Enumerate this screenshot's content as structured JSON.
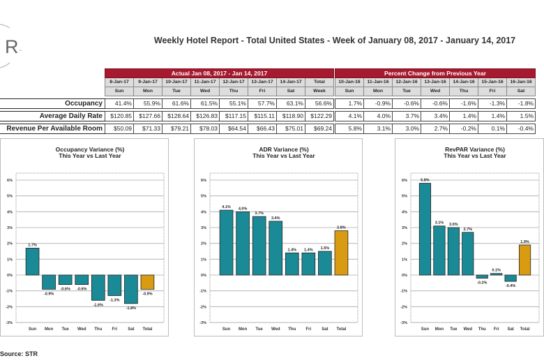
{
  "logo": {
    "text": "STR"
  },
  "title": "Weekly Hotel Report - Total United States - Week of January 08, 2017 - January 14, 2017",
  "table": {
    "actual_header": "Actual Jan 08, 2017 - Jan 14, 2017",
    "change_header": "Percent Change from Previous Year",
    "actual_dates": [
      "8-Jan-17",
      "9-Jan-17",
      "10-Jan-17",
      "11-Jan-17",
      "12-Jan-17",
      "13-Jan-17",
      "14-Jan-17",
      "Total"
    ],
    "actual_days": [
      "Sun",
      "Mon",
      "Tue",
      "Wed",
      "Thu",
      "Fri",
      "Sat",
      "Week"
    ],
    "change_dates": [
      "10-Jan-16",
      "11-Jan-16",
      "12-Jan-16",
      "13-Jan-16",
      "14-Jan-16",
      "15-Jan-16",
      "16-Jan-16"
    ],
    "change_days": [
      "Sun",
      "Mon",
      "Tue",
      "Wed",
      "Thu",
      "Fri",
      "Sat"
    ],
    "rows": [
      {
        "label": "Occupancy",
        "actual": [
          "41.4%",
          "55.9%",
          "61.6%",
          "61.5%",
          "55.1%",
          "57.7%",
          "63.1%",
          "56.6%"
        ],
        "change": [
          "1.7%",
          "-0.9%",
          "-0.6%",
          "-0.6%",
          "-1.6%",
          "-1.3%",
          "-1.8%"
        ]
      },
      {
        "label": "Average Daily Rate",
        "actual": [
          "$120.85",
          "$127.66",
          "$128.64",
          "$126.83",
          "$117.15",
          "$115.11",
          "$118.90",
          "$122.29"
        ],
        "change": [
          "4.1%",
          "4.0%",
          "3.7%",
          "3.4%",
          "1.4%",
          "1.4%",
          "1.5%"
        ]
      },
      {
        "label": "Revenue Per Available Room",
        "actual": [
          "$50.09",
          "$71.33",
          "$79.21",
          "$78.03",
          "$64.54",
          "$66.43",
          "$75.01",
          "$69.24"
        ],
        "change": [
          "5.8%",
          "3.1%",
          "3.0%",
          "2.7%",
          "-0.2%",
          "0.1%",
          "-0.4%"
        ]
      }
    ]
  },
  "colors": {
    "bar": "#1a8a96",
    "total_bar": "#d89b12",
    "header_red": "#a6192e"
  },
  "chart_data": [
    {
      "type": "bar",
      "title": "Occupancy Variance (%)",
      "subtitle": "This Year vs Last Year",
      "categories": [
        "Sun",
        "Mon",
        "Tue",
        "Wed",
        "Thu",
        "Fri",
        "Sat",
        "Total"
      ],
      "values": [
        1.7,
        -0.9,
        -0.6,
        -0.6,
        -1.6,
        -1.3,
        -1.8,
        -0.9
      ],
      "labels": [
        "1.7%",
        "-0.9%",
        "-0.6%",
        "-0.6%",
        "-1.6%",
        "-1.3%",
        "-1.8%",
        "-0.9%"
      ],
      "yticks": [
        "6%",
        "5%",
        "4%",
        "3%",
        "2%",
        "1%",
        "0%",
        "-1%",
        "-2%",
        "-3%"
      ],
      "ylim": [
        -3,
        6
      ],
      "grid": true
    },
    {
      "type": "bar",
      "title": "ADR Variance (%)",
      "subtitle": "This Year vs Last Year",
      "categories": [
        "Sun",
        "Mon",
        "Tue",
        "Wed",
        "Thu",
        "Fri",
        "Sat",
        "Total"
      ],
      "values": [
        4.1,
        4.0,
        3.7,
        3.4,
        1.4,
        1.4,
        1.5,
        2.8
      ],
      "labels": [
        "4.1%",
        "4.0%",
        "3.7%",
        "3.4%",
        "1.4%",
        "1.4%",
        "1.5%",
        "2.8%"
      ],
      "yticks": [
        "6%",
        "5%",
        "4%",
        "3%",
        "2%",
        "1%",
        "0%",
        "-1%",
        "-2%",
        "-3%"
      ],
      "ylim": [
        -3,
        6
      ],
      "grid": true
    },
    {
      "type": "bar",
      "title": "RevPAR Variance (%)",
      "subtitle": "This Year vs Last Year",
      "categories": [
        "Sun",
        "Mon",
        "Tue",
        "Wed",
        "Thu",
        "Fri",
        "Sat",
        "Total"
      ],
      "values": [
        5.8,
        3.1,
        3.0,
        2.7,
        -0.2,
        0.1,
        -0.4,
        1.9
      ],
      "labels": [
        "5.8%",
        "3.1%",
        "3.0%",
        "2.7%",
        "-0.2%",
        "0.1%",
        "-0.4%",
        "1.9%"
      ],
      "yticks": [
        "6%",
        "5%",
        "4%",
        "3%",
        "2%",
        "1%",
        "0%",
        "-1%",
        "-2%",
        "-3%"
      ],
      "ylim": [
        -3,
        6
      ],
      "grid": true
    }
  ],
  "source": "Source: STR"
}
